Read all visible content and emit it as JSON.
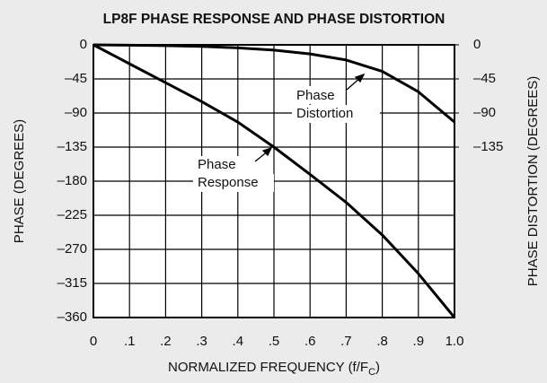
{
  "chart_data": {
    "type": "line",
    "title": "LP8F PHASE RESPONSE AND PHASE DISTORTION",
    "xlabel": [
      "NORMALIZED FREQUENCY (f/F",
      "C",
      ")"
    ],
    "ylabel": "PHASE (DEGREES)",
    "y2label": "PHASE DISTORTION (DEGREES)",
    "x": [
      0,
      0.1,
      0.2,
      0.3,
      0.4,
      0.5,
      0.6,
      0.7,
      0.8,
      0.9,
      1.0
    ],
    "series": [
      {
        "color": "#000000",
        "values": [
          0,
          -25,
          -50,
          -75,
          -102,
          -135,
          -171,
          -208,
          -251,
          -302,
          -360
        ]
      },
      {
        "color": "#000000",
        "axis": "y2",
        "values": [
          0,
          -0.5,
          -1,
          -2,
          -4,
          -7,
          -12,
          -20,
          -35,
          -62,
          -102
        ]
      }
    ],
    "annotations": [
      {
        "lines": [
          "Phase",
          "Response"
        ]
      },
      {
        "lines": [
          "Phase",
          "Distortion"
        ]
      }
    ],
    "xlim": [
      0,
      1.0
    ],
    "xticks": [
      0,
      {
        "value": 0.1,
        "label": ".1"
      },
      {
        "value": 0.2,
        "label": ".2"
      },
      {
        "value": 0.3,
        "label": ".3"
      },
      {
        "value": 0.4,
        "label": ".4"
      },
      {
        "value": 0.5,
        "label": ".5"
      },
      {
        "value": 0.6,
        "label": ".6"
      },
      {
        "value": 0.7,
        "label": ".7"
      },
      {
        "value": 0.8,
        "label": ".8"
      },
      {
        "value": 0.9,
        "label": ".9"
      },
      {
        "value": 1.0,
        "label": "1.0"
      }
    ],
    "ylim": [
      -360,
      0
    ],
    "yticks": [
      0,
      {
        "value": -45,
        "label": "–45"
      },
      {
        "value": -90,
        "label": "–90"
      },
      {
        "value": -135,
        "label": "–135"
      },
      {
        "value": -180,
        "label": "–180"
      },
      {
        "value": -225,
        "label": "–225"
      },
      {
        "value": -270,
        "label": "–270"
      },
      {
        "value": -315,
        "label": "–315"
      },
      {
        "value": -360,
        "label": "–360"
      }
    ],
    "y2lim": [
      -360,
      0
    ],
    "y2ticks": [
      0,
      {
        "value": -45,
        "label": "–45"
      },
      {
        "value": -90,
        "label": "–90"
      },
      {
        "value": -135,
        "label": "–135"
      }
    ],
    "grid": true
  }
}
